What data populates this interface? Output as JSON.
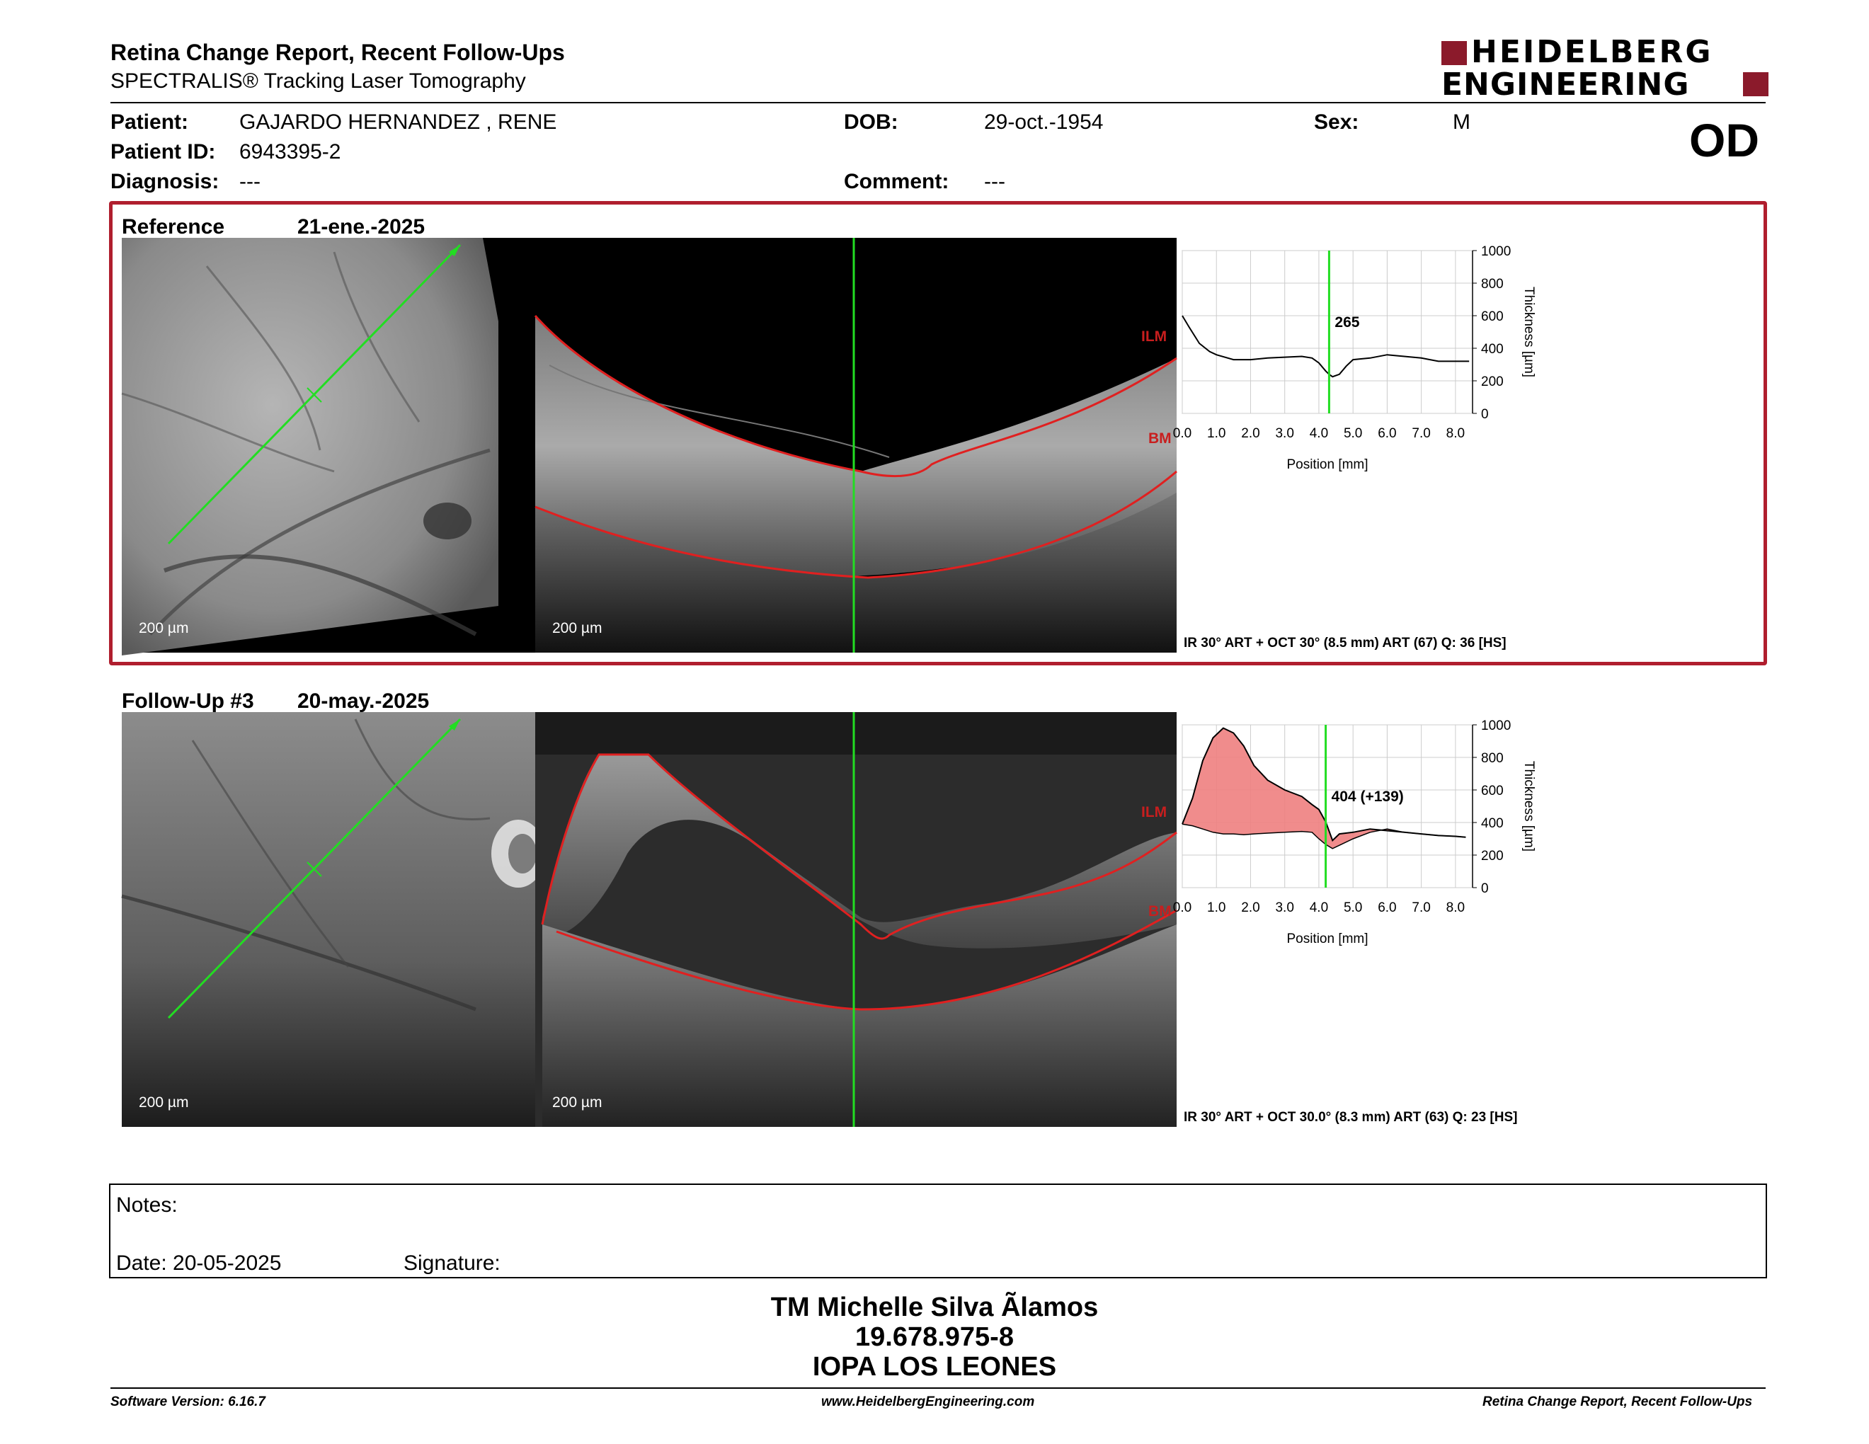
{
  "header": {
    "title": "Retina Change Report, Recent Follow-Ups",
    "subtitle": "SPECTRALIS® Tracking Laser Tomography",
    "logo_line1": "HEIDELBERG",
    "logo_line2": "ENGINEERING",
    "eye": "OD"
  },
  "patient": {
    "name_label": "Patient:",
    "name": "GAJARDO HERNANDEZ , RENE",
    "id_label": "Patient ID:",
    "id": "6943395-2",
    "diagnosis_label": "Diagnosis:",
    "diagnosis": "---",
    "dob_label": "DOB:",
    "dob": "29-oct.-1954",
    "comment_label": "Comment:",
    "comment": "---",
    "sex_label": "Sex:",
    "sex": "M"
  },
  "reference": {
    "label": "Reference",
    "date": "21-ene.-2025",
    "scale_ir": "200 µm",
    "scale_oct": "200 µm",
    "ilm": "ILM",
    "bm": "BM",
    "caption": "IR 30° ART + OCT 30° (8.5 mm) ART (67) Q: 36 [HS]",
    "marker_value": "265"
  },
  "followup": {
    "label": "Follow-Up #3",
    "date": "20-may.-2025",
    "scale_ir": "200 µm",
    "scale_oct": "200 µm",
    "ilm": "ILM",
    "bm": "BM",
    "caption": "IR 30° ART + OCT 30.0° (8.3 mm) ART (63) Q: 23 [HS]",
    "marker_value": "404 (+139)"
  },
  "chart_data": [
    {
      "type": "line",
      "xlabel": "Position [mm]",
      "ylabel": "Thickness [µm]",
      "ylim": [
        0,
        1000
      ],
      "yticks": [
        "1000",
        "800",
        "600",
        "400",
        "200",
        "0"
      ],
      "xticks": [
        "0.0",
        "1.0",
        "2.0",
        "3.0",
        "4.0",
        "5.0",
        "6.0",
        "7.0",
        "8.0"
      ],
      "marker_x": 4.3,
      "series": [
        {
          "x": [
            0.0,
            0.2,
            0.5,
            0.8,
            1.0,
            1.5,
            2.0,
            2.5,
            3.0,
            3.5,
            3.8,
            4.0,
            4.2,
            4.3,
            4.4,
            4.6,
            4.8,
            5.0,
            5.5,
            6.0,
            6.5,
            7.0,
            7.5,
            8.0,
            8.4
          ],
          "values": [
            600,
            530,
            430,
            380,
            360,
            330,
            330,
            340,
            345,
            350,
            340,
            310,
            260,
            240,
            225,
            240,
            290,
            330,
            340,
            360,
            350,
            340,
            320,
            320,
            320
          ]
        }
      ]
    },
    {
      "type": "area",
      "xlabel": "Position [mm]",
      "ylabel": "Thickness [µm]",
      "ylim": [
        0,
        1000
      ],
      "yticks": [
        "1000",
        "800",
        "600",
        "400",
        "200",
        "0"
      ],
      "xticks": [
        "0.0",
        "1.0",
        "2.0",
        "3.0",
        "4.0",
        "5.0",
        "6.0",
        "7.0",
        "8.0"
      ],
      "marker_x": 4.2,
      "series": [
        {
          "x": [
            0.0,
            0.3,
            0.6,
            0.9,
            1.2,
            1.5,
            1.8,
            2.1,
            2.5,
            3.0,
            3.5,
            3.8,
            4.0,
            4.2,
            4.4,
            4.6,
            5.0,
            5.5,
            6.0,
            6.5,
            7.0,
            7.5,
            8.0,
            8.3
          ],
          "values": [
            390,
            550,
            780,
            920,
            980,
            950,
            870,
            750,
            660,
            600,
            560,
            510,
            480,
            404,
            290,
            330,
            340,
            360,
            350,
            340,
            330,
            320,
            315,
            310
          ]
        },
        {
          "x": [
            0.0,
            0.3,
            0.6,
            0.9,
            1.2,
            1.5,
            1.8,
            2.1,
            2.5,
            3.0,
            3.5,
            3.8,
            4.0,
            4.2,
            4.4,
            4.6,
            5.0,
            5.5,
            6.0,
            6.5,
            7.0,
            7.5,
            8.0,
            8.3
          ],
          "values": [
            390,
            380,
            360,
            340,
            330,
            330,
            325,
            330,
            335,
            340,
            345,
            340,
            300,
            265,
            240,
            260,
            300,
            340,
            360,
            340,
            330,
            320,
            315,
            310
          ]
        }
      ]
    }
  ],
  "notes": {
    "label": "Notes:",
    "date": "Date: 20-05-2025",
    "signature": "Signature:"
  },
  "signer": {
    "name": "TM Michelle Silva Ãlamos",
    "rut": "19.678.975-8",
    "place": "IOPA LOS LEONES"
  },
  "footer": {
    "left": "Software Version: 6.16.7",
    "center": "www.HeidelbergEngineering.com",
    "right": "Retina Change Report, Recent Follow-Ups"
  },
  "colors": {
    "frame_red": "#b01e2e",
    "scan_line": "#22dd22",
    "diff_fill": "#ee8080"
  }
}
